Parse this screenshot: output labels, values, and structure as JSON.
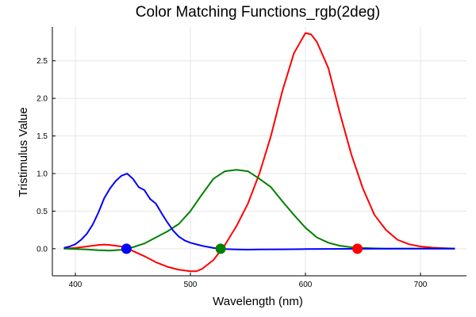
{
  "chart_data": {
    "type": "line",
    "title": "Color Matching Functions_rgb(2deg)",
    "xlabel": "Wavelength (nm)",
    "ylabel": "Tristimulus Value",
    "xlim": [
      380,
      740
    ],
    "ylim": [
      -0.36,
      2.95
    ],
    "xticks": [
      400,
      500,
      600,
      700
    ],
    "yticks": [
      0.0,
      0.5,
      1.0,
      1.5,
      2.0,
      2.5
    ],
    "grid": true,
    "legend": "none",
    "series": [
      {
        "color": "#ff0000",
        "x": [
          390,
          400,
          410,
          420,
          425,
          430,
          440,
          445,
          450,
          460,
          470,
          480,
          490,
          500,
          505,
          510,
          520,
          530,
          540,
          550,
          560,
          570,
          580,
          590,
          600,
          605,
          610,
          620,
          630,
          640,
          650,
          660,
          670,
          680,
          690,
          700,
          710,
          720,
          730
        ],
        "y": [
          0.0,
          0.01,
          0.03,
          0.05,
          0.055,
          0.05,
          0.03,
          0.0,
          -0.03,
          -0.1,
          -0.18,
          -0.24,
          -0.28,
          -0.3,
          -0.3,
          -0.27,
          -0.15,
          0.05,
          0.3,
          0.6,
          1.0,
          1.5,
          2.1,
          2.6,
          2.87,
          2.85,
          2.75,
          2.4,
          1.8,
          1.25,
          0.8,
          0.45,
          0.25,
          0.12,
          0.06,
          0.03,
          0.015,
          0.008,
          0.003
        ]
      },
      {
        "color": "#008000",
        "x": [
          390,
          400,
          410,
          420,
          430,
          440,
          450,
          460,
          470,
          480,
          490,
          500,
          510,
          520,
          530,
          540,
          550,
          560,
          570,
          580,
          590,
          600,
          610,
          620,
          630,
          640,
          650,
          660,
          670,
          680,
          690,
          700,
          710,
          720,
          730
        ],
        "y": [
          0.0,
          -0.005,
          -0.01,
          -0.02,
          -0.025,
          -0.015,
          0.02,
          0.07,
          0.15,
          0.23,
          0.33,
          0.5,
          0.72,
          0.93,
          1.03,
          1.05,
          1.03,
          0.93,
          0.82,
          0.63,
          0.45,
          0.28,
          0.15,
          0.08,
          0.04,
          0.02,
          0.01,
          0.005,
          0.002,
          0.001,
          0.0,
          0.0,
          0.0,
          0.0,
          0.0
        ]
      },
      {
        "color": "#0000ff",
        "x": [
          390,
          395,
          400,
          405,
          410,
          415,
          420,
          425,
          430,
          435,
          440,
          445,
          450,
          455,
          460,
          465,
          470,
          475,
          480,
          485,
          490,
          495,
          500,
          510,
          520,
          530,
          540,
          550,
          560,
          580,
          600,
          620,
          640,
          660,
          680,
          700,
          730
        ],
        "y": [
          0.01,
          0.03,
          0.06,
          0.12,
          0.2,
          0.32,
          0.48,
          0.67,
          0.8,
          0.9,
          0.97,
          1.0,
          0.93,
          0.82,
          0.78,
          0.66,
          0.6,
          0.47,
          0.35,
          0.24,
          0.16,
          0.11,
          0.08,
          0.04,
          0.01,
          -0.005,
          -0.01,
          -0.012,
          -0.01,
          -0.008,
          -0.005,
          -0.003,
          -0.002,
          -0.001,
          0.0,
          0.0,
          0.0
        ]
      }
    ],
    "markers": [
      {
        "x": 444.4,
        "y": 0.0,
        "color": "#0000ff"
      },
      {
        "x": 526.3,
        "y": 0.0,
        "color": "#008000"
      },
      {
        "x": 645.2,
        "y": 0.0,
        "color": "#ff0000"
      }
    ]
  }
}
